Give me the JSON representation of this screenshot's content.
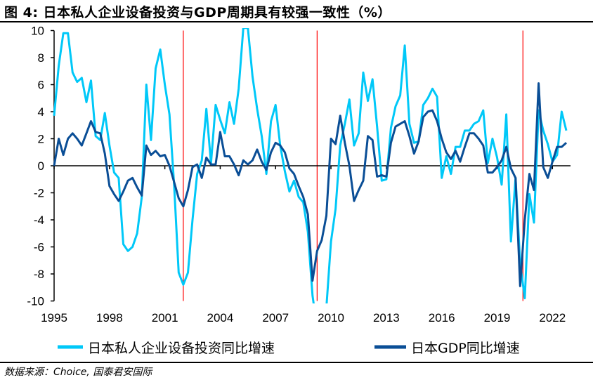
{
  "title": "图 4:  日本私人企业设备投资与GDP周期具有较强一致性（%）",
  "source": "数据来源：Choice, 国泰君安国际",
  "chart_data": {
    "type": "line",
    "title": "图 4:  日本私人企业设备投资与GDP周期具有较强一致性（%）",
    "xlabel": "",
    "ylabel": "",
    "xlim": [
      1995,
      2023
    ],
    "ylim": [
      -10,
      10
    ],
    "x_ticks": [
      1995,
      1998,
      2001,
      2004,
      2007,
      2010,
      2013,
      2016,
      2019,
      2022
    ],
    "x_tick_labels": [
      "1995",
      "1998",
      "2001",
      "2004",
      "2007",
      "2010",
      "2013",
      "2016",
      "2019",
      "2022"
    ],
    "y_ticks": [
      10,
      8,
      6,
      4,
      2,
      0,
      -2,
      -4,
      -6,
      -8,
      -10
    ],
    "y_tick_labels": [
      "10",
      "8",
      "6",
      "4",
      "2",
      "0",
      "-2",
      "-4",
      "-6",
      "-8",
      "-10"
    ],
    "grid": false,
    "legend_position": "bottom",
    "vertical_markers": [
      2002.0,
      2009.25,
      2020.4
    ],
    "marker_color": "#FF0000",
    "x": [
      1995,
      1995.25,
      1995.5,
      1995.75,
      1996,
      1996.25,
      1996.5,
      1996.75,
      1997,
      1997.25,
      1997.5,
      1997.75,
      1998,
      1998.25,
      1998.5,
      1998.75,
      1999,
      1999.25,
      1999.5,
      1999.75,
      2000,
      2000.25,
      2000.5,
      2000.75,
      2001,
      2001.25,
      2001.5,
      2001.75,
      2002,
      2002.25,
      2002.5,
      2002.75,
      2003,
      2003.25,
      2003.5,
      2003.75,
      2004,
      2004.25,
      2004.5,
      2004.75,
      2005,
      2005.25,
      2005.5,
      2005.75,
      2006,
      2006.25,
      2006.5,
      2006.75,
      2007,
      2007.25,
      2007.5,
      2007.75,
      2008,
      2008.25,
      2008.5,
      2008.75,
      2009,
      2009.25,
      2009.5,
      2009.75,
      2010,
      2010.25,
      2010.5,
      2010.75,
      2011,
      2011.25,
      2011.5,
      2011.75,
      2012,
      2012.25,
      2012.5,
      2012.75,
      2013,
      2013.25,
      2013.5,
      2013.75,
      2014,
      2014.25,
      2014.5,
      2014.75,
      2015,
      2015.25,
      2015.5,
      2015.75,
      2016,
      2016.25,
      2016.5,
      2016.75,
      2017,
      2017.25,
      2017.5,
      2017.75,
      2018,
      2018.25,
      2018.5,
      2018.75,
      2019,
      2019.25,
      2019.5,
      2019.75,
      2020,
      2020.25,
      2020.5,
      2020.75,
      2021,
      2021.25,
      2021.5,
      2021.75,
      2022,
      2022.25,
      2022.5,
      2022.75
    ],
    "series": [
      {
        "name": "日本私人企业设备投资同比增速",
        "color": "#00C8F8",
        "values": [
          3.7,
          7.4,
          9.8,
          9.8,
          6.9,
          6.2,
          6.5,
          4.7,
          6.3,
          2.2,
          1.9,
          3.9,
          1.5,
          -0.5,
          -0.9,
          -5.8,
          -6.3,
          -6.0,
          -5.0,
          -2.3,
          6.0,
          1.9,
          7.2,
          8.6,
          6.0,
          3.8,
          -1.4,
          -7.9,
          -8.8,
          -7.9,
          -4.0,
          -0.6,
          0.4,
          4.2,
          0.2,
          4.5,
          3.4,
          2.4,
          4.7,
          3.1,
          5.7,
          10.2,
          10.2,
          6.6,
          4.2,
          2.2,
          -0.6,
          3.3,
          4.5,
          1.5,
          -0.4,
          -1.9,
          -1.1,
          -2.3,
          -2.7,
          -4.9,
          -9.6,
          -12.0,
          -13.0,
          -10.5,
          -5.6,
          -3.2,
          1.5,
          3.1,
          4.9,
          1.5,
          2.4,
          6.9,
          4.8,
          6.4,
          2.9,
          -1.1,
          -1.0,
          2.8,
          4.4,
          5.2,
          8.9,
          3.1,
          1.7,
          1.8,
          4.5,
          5.0,
          5.7,
          5.1,
          -0.9,
          0.7,
          -0.6,
          1.4,
          1.4,
          2.6,
          2.6,
          3.1,
          3.3,
          4.1,
          0.2,
          2.0,
          0.6,
          -1.4,
          3.8,
          -5.6,
          -0.9,
          -7.2,
          -9.8,
          -2.1,
          -4.2,
          4.1,
          2.6,
          1.6,
          0.3,
          0.8,
          4.0,
          2.6
        ]
      },
      {
        "name": "日本GDP同比增速",
        "color": "#0A4E96",
        "values": [
          0.0,
          2.0,
          0.8,
          2.0,
          2.4,
          2.0,
          1.5,
          2.4,
          3.3,
          2.5,
          2.4,
          0.9,
          -1.5,
          -2.1,
          -2.6,
          -1.9,
          -1.1,
          -0.9,
          -1.6,
          -2.2,
          1.5,
          0.8,
          1.1,
          0.7,
          0.8,
          0.0,
          -1.2,
          -2.4,
          -3.0,
          -1.8,
          -0.1,
          0.1,
          -0.9,
          0.6,
          0.1,
          0.1,
          2.5,
          0.7,
          0.7,
          0.1,
          -0.7,
          0.4,
          0.1,
          0.4,
          1.2,
          0.3,
          -0.3,
          1.0,
          1.7,
          1.5,
          1.0,
          -0.2,
          -0.6,
          -1.5,
          -2.3,
          -3.6,
          -8.5,
          -6.3,
          -5.5,
          -3.7,
          2.0,
          1.6,
          3.7,
          1.7,
          0.0,
          -2.6,
          -1.8,
          -1.1,
          2.2,
          1.9,
          -0.8,
          -0.7,
          -0.8,
          1.7,
          2.9,
          3.1,
          3.3,
          2.2,
          0.9,
          1.8,
          3.6,
          4.0,
          4.1,
          3.3,
          2.0,
          1.0,
          0.5,
          1.1,
          0.3,
          1.4,
          2.4,
          2.4,
          2.0,
          1.5,
          -0.5,
          -0.5,
          -0.1,
          0.4,
          1.4,
          -0.2,
          -0.9,
          -8.9,
          -4.0,
          -0.6,
          -1.8,
          6.1,
          -0.1,
          -0.9,
          0.3,
          1.4,
          1.4,
          1.7
        ]
      }
    ]
  }
}
